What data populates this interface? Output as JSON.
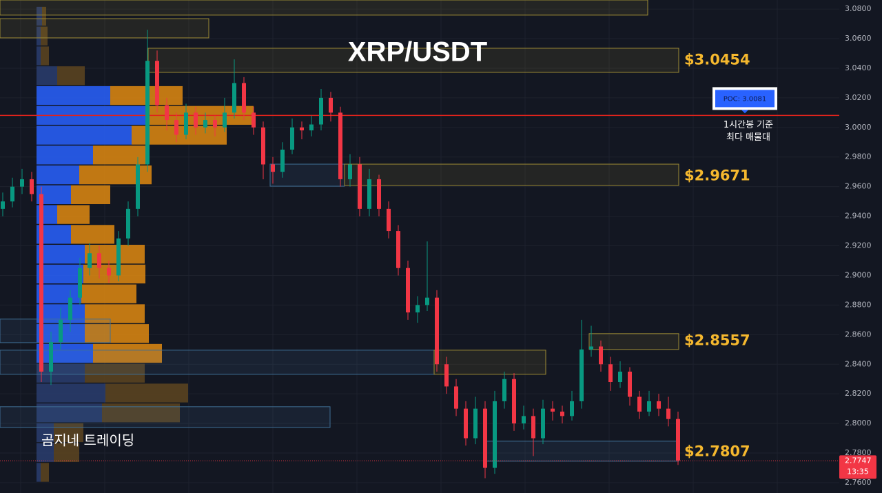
{
  "chart_data": {
    "type": "candlestick",
    "title": "XRP/USDT",
    "watermark": "곰지네 트레이딩",
    "ylim": [
      2.753,
      3.0861
    ],
    "yticks": [
      {
        "value": 2.76,
        "label": "2.7600"
      },
      {
        "value": 2.78,
        "label": "2.7800"
      },
      {
        "value": 2.8,
        "label": "2.8000"
      },
      {
        "value": 2.82,
        "label": "2.8200"
      },
      {
        "value": 2.84,
        "label": "2.8400"
      },
      {
        "value": 2.86,
        "label": "2.8600"
      },
      {
        "value": 2.88,
        "label": "2.8800"
      },
      {
        "value": 2.9,
        "label": "2.9000"
      },
      {
        "value": 2.92,
        "label": "2.9200"
      },
      {
        "value": 2.94,
        "label": "2.9400"
      },
      {
        "value": 2.96,
        "label": "2.9600"
      },
      {
        "value": 2.98,
        "label": "2.9800"
      },
      {
        "value": 3.0,
        "label": "3.0000"
      },
      {
        "value": 3.02,
        "label": "3.0200"
      },
      {
        "value": 3.04,
        "label": "3.0400"
      },
      {
        "value": 3.06,
        "label": "3.0600"
      },
      {
        "value": 3.08,
        "label": "3.0800"
      }
    ],
    "grid": true,
    "up_color": "#089981",
    "down_color": "#f23645",
    "candles": [
      [
        2.945,
        2.956,
        2.94,
        2.95
      ],
      [
        2.95,
        2.966,
        2.946,
        2.96
      ],
      [
        2.96,
        2.972,
        2.955,
        2.965
      ],
      [
        2.965,
        2.97,
        2.95,
        2.955
      ],
      [
        2.955,
        2.96,
        2.828,
        2.835
      ],
      [
        2.835,
        2.862,
        2.826,
        2.855
      ],
      [
        2.855,
        2.878,
        2.85,
        2.87
      ],
      [
        2.87,
        2.89,
        2.862,
        2.885
      ],
      [
        2.885,
        2.912,
        2.88,
        2.905
      ],
      [
        2.905,
        2.922,
        2.9,
        2.915
      ],
      [
        2.915,
        2.92,
        2.898,
        2.905
      ],
      [
        2.905,
        2.91,
        2.895,
        2.9
      ],
      [
        2.9,
        2.93,
        2.896,
        2.925
      ],
      [
        2.925,
        2.95,
        2.92,
        2.945
      ],
      [
        2.945,
        2.98,
        2.94,
        2.975
      ],
      [
        2.975,
        3.066,
        2.97,
        3.045
      ],
      [
        3.045,
        3.052,
        3.01,
        3.015
      ],
      [
        3.015,
        3.02,
        2.998,
        3.005
      ],
      [
        3.005,
        3.01,
        2.99,
        2.995
      ],
      [
        2.995,
        3.016,
        2.992,
        3.01
      ],
      [
        3.01,
        3.014,
        2.995,
        3.0
      ],
      [
        3.0,
        3.01,
        2.996,
        3.005
      ],
      [
        3.005,
        3.008,
        2.994,
        3.0
      ],
      [
        3.0,
        3.02,
        2.997,
        3.01
      ],
      [
        3.01,
        3.046,
        3.006,
        3.03
      ],
      [
        3.03,
        3.034,
        3.005,
        3.01
      ],
      [
        3.01,
        3.014,
        2.995,
        3.0
      ],
      [
        3.0,
        3.004,
        2.965,
        2.975
      ],
      [
        2.975,
        2.98,
        2.962,
        2.97
      ],
      [
        2.97,
        2.99,
        2.966,
        2.985
      ],
      [
        2.985,
        3.006,
        2.982,
        3.0
      ],
      [
        3.0,
        3.004,
        2.992,
        2.998
      ],
      [
        2.998,
        3.008,
        2.994,
        3.002
      ],
      [
        3.002,
        3.026,
        2.998,
        3.02
      ],
      [
        3.02,
        3.024,
        3.004,
        3.01
      ],
      [
        3.01,
        3.014,
        2.96,
        2.965
      ],
      [
        2.965,
        2.982,
        2.96,
        2.975
      ],
      [
        2.975,
        2.98,
        2.94,
        2.945
      ],
      [
        2.945,
        2.972,
        2.94,
        2.965
      ],
      [
        2.965,
        2.968,
        2.94,
        2.945
      ],
      [
        2.945,
        2.95,
        2.925,
        2.93
      ],
      [
        2.93,
        2.934,
        2.9,
        2.905
      ],
      [
        2.905,
        2.91,
        2.87,
        2.875
      ],
      [
        2.875,
        2.886,
        2.868,
        2.88
      ],
      [
        2.88,
        2.923,
        2.876,
        2.885
      ],
      [
        2.885,
        2.89,
        2.835,
        2.84
      ],
      [
        2.84,
        2.845,
        2.82,
        2.825
      ],
      [
        2.825,
        2.83,
        2.805,
        2.81
      ],
      [
        2.81,
        2.815,
        2.785,
        2.79
      ],
      [
        2.79,
        2.818,
        2.786,
        2.81
      ],
      [
        2.81,
        2.815,
        2.763,
        2.77
      ],
      [
        2.77,
        2.822,
        2.766,
        2.815
      ],
      [
        2.815,
        2.835,
        2.81,
        2.83
      ],
      [
        2.83,
        2.834,
        2.795,
        2.8
      ],
      [
        2.8,
        2.812,
        2.796,
        2.805
      ],
      [
        2.805,
        2.81,
        2.778,
        2.79
      ],
      [
        2.79,
        2.816,
        2.786,
        2.81
      ],
      [
        2.81,
        2.815,
        2.802,
        2.808
      ],
      [
        2.808,
        2.812,
        2.8,
        2.805
      ],
      [
        2.805,
        2.822,
        2.802,
        2.815
      ],
      [
        2.815,
        2.87,
        2.81,
        2.85
      ],
      [
        2.85,
        2.866,
        2.845,
        2.852
      ],
      [
        2.852,
        2.856,
        2.835,
        2.84
      ],
      [
        2.84,
        2.845,
        2.822,
        2.828
      ],
      [
        2.828,
        2.842,
        2.824,
        2.835
      ],
      [
        2.835,
        2.838,
        2.812,
        2.818
      ],
      [
        2.818,
        2.822,
        2.803,
        2.808
      ],
      [
        2.808,
        2.822,
        2.805,
        2.815
      ],
      [
        2.815,
        2.82,
        2.805,
        2.81
      ],
      [
        2.81,
        2.818,
        2.798,
        2.803
      ],
      [
        2.803,
        2.808,
        2.772,
        2.775
      ]
    ],
    "profile": {
      "bins": [
        3.0815,
        3.0681,
        3.0547,
        3.0413,
        3.0279,
        3.0145,
        3.0011,
        2.9877,
        2.9743,
        2.9609,
        2.9475,
        2.9341,
        2.9207,
        2.9073,
        2.8939,
        2.8805,
        2.8671,
        2.8537,
        2.8403,
        2.8269,
        2.8135,
        2.8001,
        2.7867,
        2.7733,
        2.7599
      ],
      "buy": [
        8,
        6,
        6,
        30,
        107,
        162,
        138,
        82,
        62,
        50,
        30,
        50,
        70,
        68,
        65,
        70,
        70,
        82,
        70,
        100,
        95,
        25,
        25,
        6
      ],
      "sell": [
        6,
        10,
        12,
        40,
        105,
        153,
        138,
        80,
        105,
        57,
        47,
        63,
        87,
        90,
        80,
        87,
        93,
        100,
        87,
        120,
        113,
        43,
        37,
        12
      ],
      "buy_color": "#2962ff",
      "sell_color": "#e08a10",
      "value_area": [
        2.8403,
        3.0279
      ]
    },
    "zones": [
      {
        "top": 3.0861,
        "bottom": 3.0759,
        "color": "yellow"
      },
      {
        "top": 3.0735,
        "bottom": 3.0605,
        "color": "yellow"
      },
      {
        "top": 3.0535,
        "bottom": 3.0372,
        "color": "yellow",
        "label": {
          "value": 3.0454,
          "label": "$3.0454"
        }
      },
      {
        "top": 2.9752,
        "bottom": 2.9603,
        "color": "blue"
      },
      {
        "top": 2.9752,
        "bottom": 2.9608,
        "color": "yellow",
        "label": {
          "value": 2.9671,
          "label": "$2.9671"
        }
      },
      {
        "top": 2.8705,
        "bottom": 2.8546,
        "color": "blue"
      },
      {
        "top": 2.8607,
        "bottom": 2.85,
        "color": "yellow",
        "label": {
          "value": 2.8557,
          "label": "$2.8557"
        }
      },
      {
        "top": 2.8495,
        "bottom": 2.8332,
        "color": "blue"
      },
      {
        "top": 2.8495,
        "bottom": 2.8332,
        "color": "yellow"
      },
      {
        "top": 2.8113,
        "bottom": 2.7973,
        "color": "blue"
      },
      {
        "top": 2.788,
        "bottom": 2.7745,
        "color": "blue",
        "label": {
          "value": 2.7807,
          "label": "$2.7807"
        }
      }
    ],
    "poc": {
      "value": 3.0081,
      "label": "POC: 3.0081",
      "note": [
        "1시간봉 기준",
        "최다 매물대"
      ]
    },
    "last_price": {
      "value": 2.7747,
      "label": "2.7747",
      "countdown": "13:35"
    }
  }
}
